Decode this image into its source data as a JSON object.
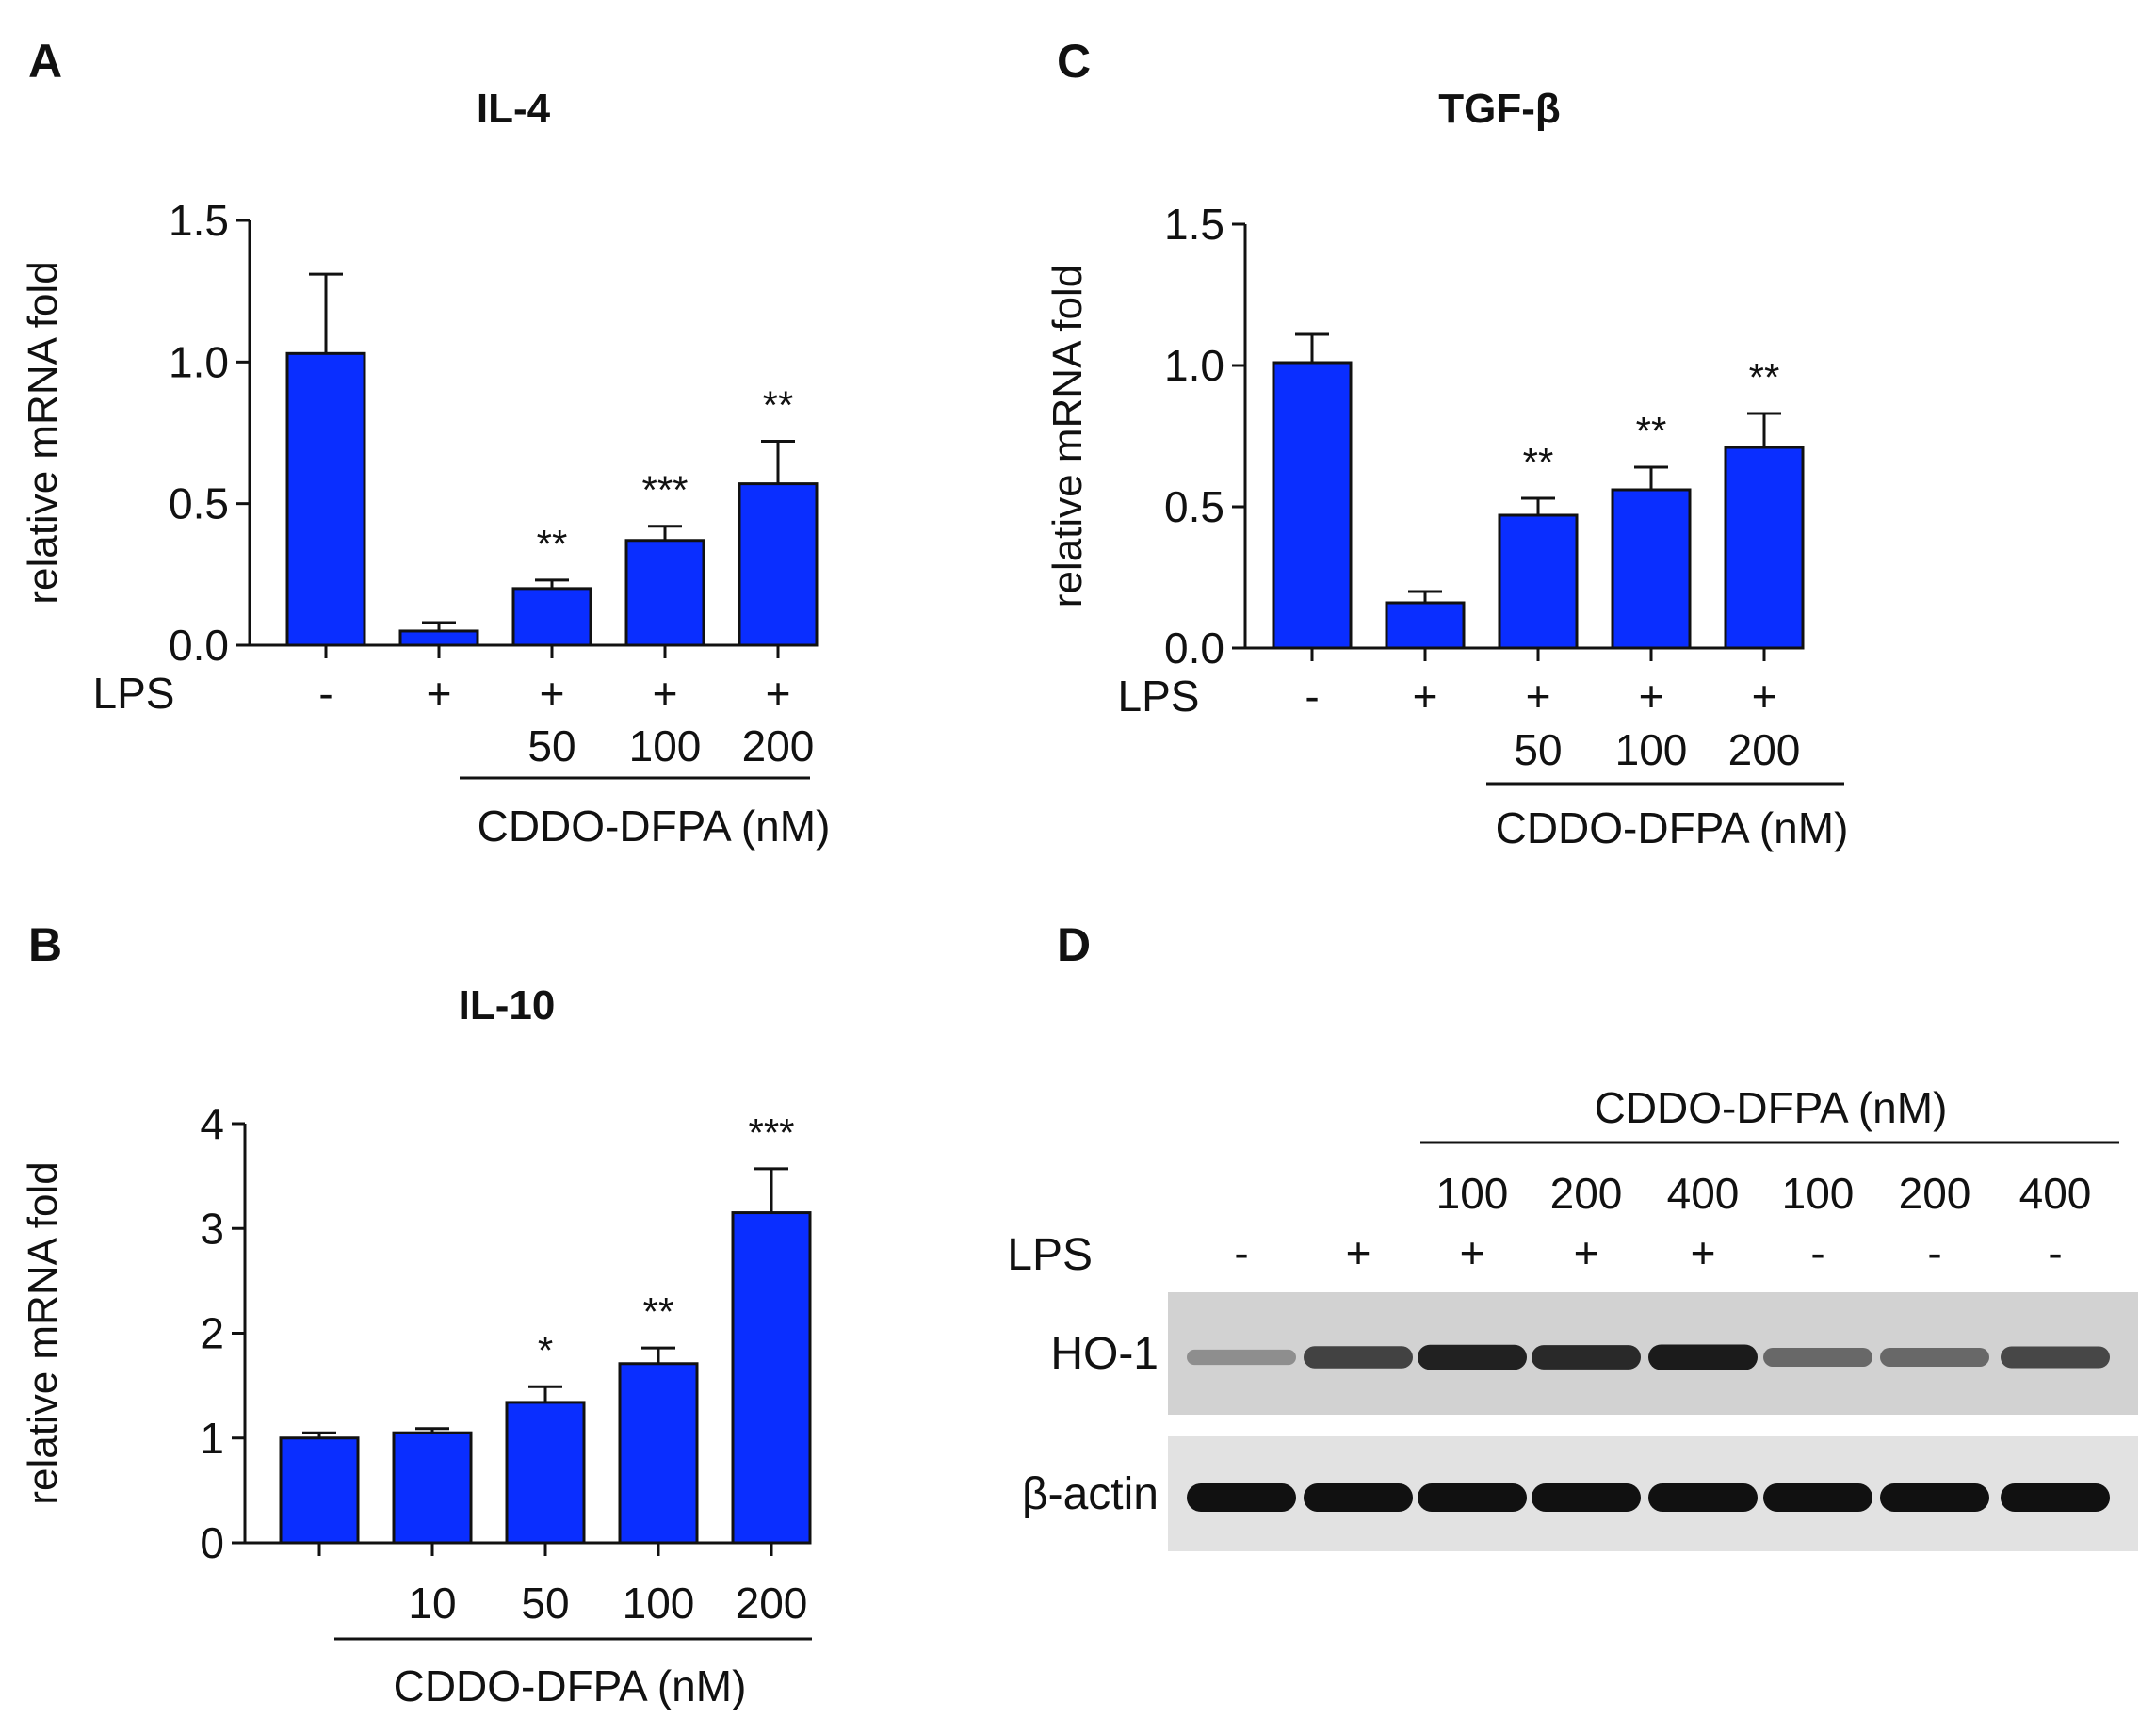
{
  "chart_data": [
    {
      "panel": "A",
      "type": "bar",
      "title": "IL-4",
      "ylabel": "relative mRNA fold",
      "ylim": [
        0,
        1.5
      ],
      "yticks": [
        "0.0",
        "0.5",
        "1.0",
        "1.5"
      ],
      "color": "#0a2eff",
      "row_label": "LPS",
      "lps": [
        "-",
        "+",
        "+",
        "+",
        "+"
      ],
      "doses": [
        "",
        "",
        "50",
        "100",
        "200"
      ],
      "group_label": "CDDO-DFPA (nM)",
      "values": [
        1.03,
        0.05,
        0.2,
        0.37,
        0.57
      ],
      "errors": [
        0.28,
        0.03,
        0.03,
        0.05,
        0.15
      ],
      "significance": [
        "",
        "",
        "**",
        "***",
        "**"
      ]
    },
    {
      "panel": "B",
      "type": "bar",
      "title": "IL-10",
      "ylabel": "relative mRNA fold",
      "ylim": [
        0,
        4
      ],
      "yticks": [
        "0",
        "1",
        "2",
        "3",
        "4"
      ],
      "color": "#0a2eff",
      "doses": [
        "",
        "10",
        "50",
        "100",
        "200"
      ],
      "group_label": "CDDO-DFPA (nM)",
      "values": [
        1.0,
        1.05,
        1.34,
        1.71,
        3.15
      ],
      "errors": [
        0.05,
        0.04,
        0.15,
        0.15,
        0.42
      ],
      "significance": [
        "",
        "",
        "*",
        "**",
        "***"
      ]
    },
    {
      "panel": "C",
      "type": "bar",
      "title": "TGF-β",
      "ylabel": "relative mRNA fold",
      "ylim": [
        0,
        1.5
      ],
      "yticks": [
        "0.0",
        "0.5",
        "1.0",
        "1.5"
      ],
      "color": "#0a2eff",
      "row_label": "LPS",
      "lps": [
        "-",
        "+",
        "+",
        "+",
        "+"
      ],
      "doses": [
        "",
        "",
        "50",
        "100",
        "200"
      ],
      "group_label": "CDDO-DFPA (nM)",
      "values": [
        1.01,
        0.16,
        0.47,
        0.56,
        0.71
      ],
      "errors": [
        0.1,
        0.04,
        0.06,
        0.08,
        0.12
      ],
      "significance": [
        "",
        "",
        "**",
        "**",
        "**"
      ]
    }
  ],
  "panel_d": {
    "letter": "D",
    "group_label": "CDDO-DFPA (nM)",
    "doses": [
      "100",
      "200",
      "400",
      "100",
      "200",
      "400"
    ],
    "row_label": "LPS",
    "lps": [
      "-",
      "+",
      "+",
      "+",
      "+",
      "-",
      "-",
      "-"
    ],
    "bands": [
      {
        "label": "HO-1",
        "intensity": [
          0.35,
          0.75,
          0.92,
          0.88,
          0.95,
          0.55,
          0.55,
          0.72
        ]
      },
      {
        "label": "β-actin",
        "intensity": [
          1,
          1,
          1,
          1,
          1,
          1,
          1,
          1
        ]
      }
    ]
  }
}
